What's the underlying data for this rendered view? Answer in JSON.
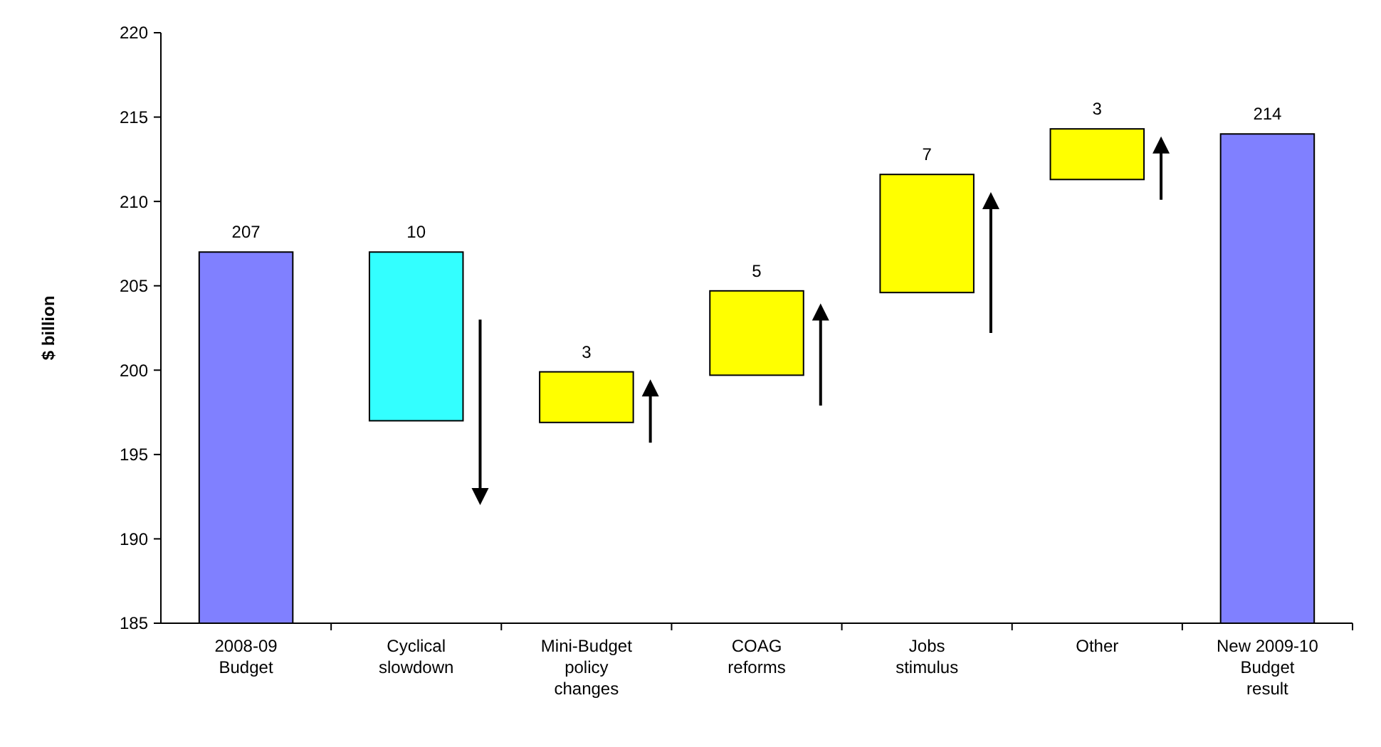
{
  "chart_data": {
    "type": "bar",
    "ylabel": "$ billion",
    "categories": [
      "2008-09 Budget",
      "Cyclical slowdown",
      "Mini-Budget policy changes",
      "COAG reforms",
      "Jobs stimulus",
      "Other",
      "New 2009-10 Budget result"
    ],
    "values": [
      207,
      -10,
      3,
      5,
      7,
      3,
      214
    ],
    "base": [
      null,
      207,
      196.9,
      199.7,
      204.6,
      211.3,
      null
    ],
    "colors": [
      "#8080ff",
      "#33ffff",
      "#ffff00",
      "#ffff00",
      "#ffff00",
      "#ffff00",
      "#8080ff"
    ],
    "value_labels": [
      "207",
      "10",
      "3",
      "5",
      "7",
      "3",
      "214"
    ],
    "ylim": [
      185,
      220
    ],
    "yticks": [
      185,
      190,
      195,
      200,
      205,
      210,
      215,
      220
    ],
    "grid": false
  }
}
